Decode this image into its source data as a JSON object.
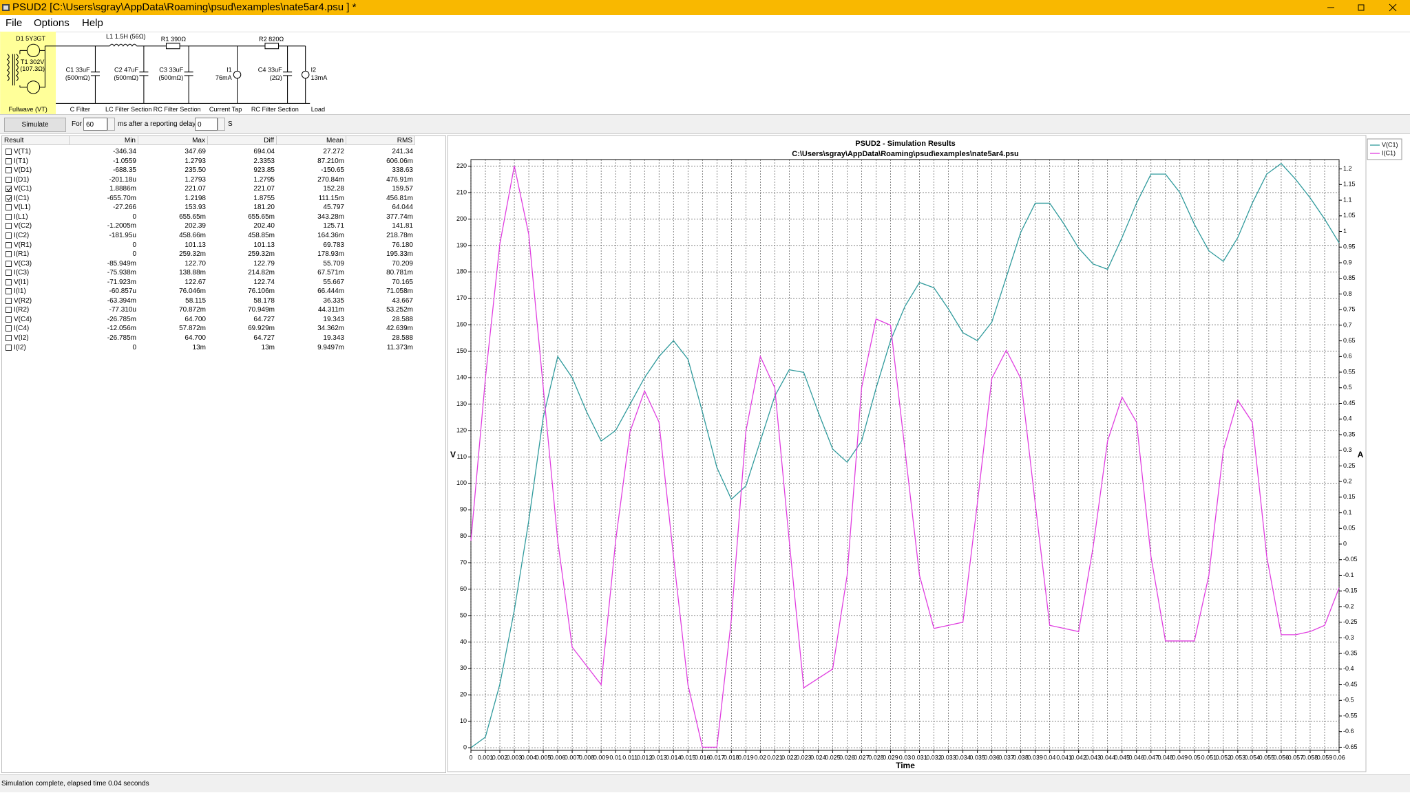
{
  "window": {
    "title": "PSUD2  [C:\\Users\\sgray\\AppData\\Roaming\\psud\\examples\\nate5ar4.psu ] *"
  },
  "menu": [
    "File",
    "Options",
    "Help"
  ],
  "schematic": {
    "d1": "D1 5Y3GT",
    "t1": [
      "T1 302V",
      "(107.3Ω)"
    ],
    "l1": "L1 1.5H (56Ω)",
    "r1": "R1 390Ω",
    "r2": "R2 820Ω",
    "c1": [
      "C1 33uF",
      "(500mΩ)"
    ],
    "c2": [
      "C2 47uF",
      "(500mΩ)"
    ],
    "c3": [
      "C3 33uF",
      "(500mΩ)"
    ],
    "i1": [
      "I1",
      "76mA"
    ],
    "c4": [
      "C4 33uF",
      "(2Ω)"
    ],
    "i2": [
      "I2",
      "13mA"
    ],
    "sections": [
      "Fullwave (VT)",
      "C Filter",
      "LC Filter Section",
      "RC Filter Section",
      "Current Tap",
      "RC Filter Section",
      "Load"
    ]
  },
  "controls": {
    "button": "Simulate",
    "for_label": "For",
    "duration": 60,
    "unit": "ms",
    "delay_label": "after a reporting delay of",
    "delay": 0,
    "delay_unit": "S"
  },
  "table": {
    "columns": [
      "Result",
      "Min",
      "Max",
      "Diff",
      "Mean",
      "RMS"
    ],
    "rows": [
      {
        "cells": [
          "V(T1)",
          "-346.34",
          "347.69",
          "694.04",
          "27.272",
          "241.34"
        ],
        "checked": false
      },
      {
        "cells": [
          "I(T1)",
          "-1.0559",
          "1.2793",
          "2.3353",
          "87.210m",
          "606.06m"
        ],
        "checked": false
      },
      {
        "cells": [
          "V(D1)",
          "-688.35",
          "235.50",
          "923.85",
          "-150.65",
          "338.63"
        ],
        "checked": false
      },
      {
        "cells": [
          "I(D1)",
          "-201.18u",
          "1.2793",
          "1.2795",
          "270.84m",
          "476.91m"
        ],
        "checked": false
      },
      {
        "cells": [
          "V(C1)",
          "1.8886m",
          "221.07",
          "221.07",
          "152.28",
          "159.57"
        ],
        "checked": true
      },
      {
        "cells": [
          "I(C1)",
          "-655.70m",
          "1.2198",
          "1.8755",
          "111.15m",
          "456.81m"
        ],
        "checked": true
      },
      {
        "cells": [
          "V(L1)",
          "-27.266",
          "153.93",
          "181.20",
          "45.797",
          "64.044"
        ],
        "checked": false
      },
      {
        "cells": [
          "I(L1)",
          "0",
          "655.65m",
          "655.65m",
          "343.28m",
          "377.74m"
        ],
        "checked": false
      },
      {
        "cells": [
          "V(C2)",
          "-1.2005m",
          "202.39",
          "202.40",
          "125.71",
          "141.81"
        ],
        "checked": false
      },
      {
        "cells": [
          "I(C2)",
          "-181.95u",
          "458.66m",
          "458.85m",
          "164.36m",
          "218.78m"
        ],
        "checked": false
      },
      {
        "cells": [
          "V(R1)",
          "0",
          "101.13",
          "101.13",
          "69.783",
          "76.180"
        ],
        "checked": false
      },
      {
        "cells": [
          "I(R1)",
          "0",
          "259.32m",
          "259.32m",
          "178.93m",
          "195.33m"
        ],
        "checked": false
      },
      {
        "cells": [
          "V(C3)",
          "-85.949m",
          "122.70",
          "122.79",
          "55.709",
          "70.209"
        ],
        "checked": false
      },
      {
        "cells": [
          "I(C3)",
          "-75.938m",
          "138.88m",
          "214.82m",
          "67.571m",
          "80.781m"
        ],
        "checked": false
      },
      {
        "cells": [
          "V(I1)",
          "-71.923m",
          "122.67",
          "122.74",
          "55.667",
          "70.165"
        ],
        "checked": false
      },
      {
        "cells": [
          "I(I1)",
          "-60.857u",
          "76.046m",
          "76.106m",
          "66.444m",
          "71.058m"
        ],
        "checked": false
      },
      {
        "cells": [
          "V(R2)",
          "-63.394m",
          "58.115",
          "58.178",
          "36.335",
          "43.667"
        ],
        "checked": false
      },
      {
        "cells": [
          "I(R2)",
          "-77.310u",
          "70.872m",
          "70.949m",
          "44.311m",
          "53.252m"
        ],
        "checked": false
      },
      {
        "cells": [
          "V(C4)",
          "-26.785m",
          "64.700",
          "64.727",
          "19.343",
          "28.588"
        ],
        "checked": false
      },
      {
        "cells": [
          "I(C4)",
          "-12.056m",
          "57.872m",
          "69.929m",
          "34.362m",
          "42.639m"
        ],
        "checked": false
      },
      {
        "cells": [
          "V(I2)",
          "-26.785m",
          "64.700",
          "64.727",
          "19.343",
          "28.588"
        ],
        "checked": false
      },
      {
        "cells": [
          "I(I2)",
          "0",
          "13m",
          "13m",
          "9.9497m",
          "11.373m"
        ],
        "checked": false
      }
    ]
  },
  "chart_data": {
    "type": "line",
    "title": "PSUD2 - Simulation Results",
    "subtitle": "C:\\Users\\sgray\\AppData\\Roaming\\psud\\examples\\nate5ar4.psu",
    "x_label": "Time",
    "y_label": "V",
    "y2_label": "A",
    "x": [
      0,
      0.001,
      0.002,
      0.003,
      0.004,
      0.005,
      0.006,
      0.007,
      0.008,
      0.009,
      0.01,
      0.011,
      0.012,
      0.013,
      0.014,
      0.015,
      0.016,
      0.017,
      0.018,
      0.019,
      0.02,
      0.021,
      0.022,
      0.023,
      0.024,
      0.025,
      0.026,
      0.027,
      0.028,
      0.029,
      0.03,
      0.031,
      0.032,
      0.033,
      0.034,
      0.035,
      0.036,
      0.037,
      0.038,
      0.039,
      0.04,
      0.041,
      0.042,
      0.043,
      0.044,
      0.045,
      0.046,
      0.047,
      0.048,
      0.049,
      0.05,
      0.051,
      0.052,
      0.053,
      0.054,
      0.055,
      0.056,
      0.057,
      0.058,
      0.059,
      0.06
    ],
    "series": [
      {
        "name": "V(C1)",
        "color": "#2f9a9c",
        "values": [
          0,
          4,
          24,
          52,
          86,
          125,
          148,
          140,
          127,
          116,
          120,
          130,
          140,
          148,
          154,
          147,
          127,
          106,
          94,
          99,
          116,
          133,
          143,
          142,
          127,
          113,
          108,
          116,
          136,
          154,
          167,
          176,
          174,
          166,
          157,
          154,
          161,
          178,
          195,
          206,
          206,
          198,
          189,
          183,
          181,
          193,
          206,
          217,
          217,
          210,
          198,
          188,
          184,
          193,
          206,
          217,
          221,
          215,
          208,
          200,
          191
        ]
      },
      {
        "name": "I(C1)",
        "color": "#e03ee0",
        "axis": "y2",
        "values": [
          0.01,
          0.53,
          0.96,
          1.21,
          0.99,
          0.5,
          0.01,
          -0.33,
          -0.39,
          -0.45,
          0.01,
          0.36,
          0.49,
          0.39,
          -0.04,
          -0.45,
          -0.65,
          -0.65,
          -0.24,
          0.36,
          0.6,
          0.5,
          0.01,
          -0.46,
          -0.43,
          -0.4,
          -0.1,
          0.5,
          0.72,
          0.7,
          0.3,
          -0.1,
          -0.27,
          -0.26,
          -0.25,
          0.13,
          0.53,
          0.62,
          0.53,
          0.13,
          -0.26,
          -0.27,
          -0.28,
          -0.01,
          0.33,
          0.47,
          0.39,
          -0.04,
          -0.31,
          -0.31,
          -0.31,
          -0.1,
          0.3,
          0.46,
          0.39,
          -0.04,
          -0.29,
          -0.29,
          -0.28,
          -0.26,
          -0.14
        ]
      }
    ],
    "xlim": [
      0,
      0.06
    ],
    "xticks": [
      0,
      0.001,
      0.002,
      0.003,
      0.004,
      0.005,
      0.006,
      0.007,
      0.008,
      0.009,
      0.01,
      0.011,
      0.012,
      0.013,
      0.014,
      0.015,
      0.016,
      0.017,
      0.018,
      0.019,
      0.02,
      0.021,
      0.022,
      0.023,
      0.024,
      0.025,
      0.026,
      0.027,
      0.028,
      0.029,
      0.03,
      0.031,
      0.032,
      0.033,
      0.034,
      0.035,
      0.036,
      0.037,
      0.038,
      0.039,
      0.04,
      0.041,
      0.042,
      0.043,
      0.044,
      0.045,
      0.046,
      0.047,
      0.048,
      0.049,
      0.05,
      0.051,
      0.052,
      0.053,
      0.054,
      0.055,
      0.056,
      0.057,
      0.058,
      0.059,
      0.06
    ],
    "ylim": [
      -1,
      222.5
    ],
    "yticks": [
      0,
      10,
      20,
      30,
      40,
      50,
      60,
      70,
      80,
      90,
      100,
      110,
      120,
      130,
      140,
      150,
      160,
      170,
      180,
      190,
      200,
      210,
      220
    ],
    "y2lim": [
      -0.66,
      1.23
    ],
    "y2ticks": [
      -0.65,
      -0.6,
      -0.55,
      -0.5,
      -0.45,
      -0.4,
      -0.35,
      -0.3,
      -0.25,
      -0.2,
      -0.15,
      -0.1,
      -0.05,
      0,
      0.05,
      0.1,
      0.15,
      0.2,
      0.25,
      0.3,
      0.35,
      0.4,
      0.45,
      0.5,
      0.55,
      0.6,
      0.65,
      0.7,
      0.75,
      0.8,
      0.85,
      0.9,
      0.95,
      1,
      1.05,
      1.1,
      1.15,
      1.2
    ],
    "grid": true,
    "legend": "right"
  },
  "status": "Simulation complete, elapsed time 0.04 seconds"
}
